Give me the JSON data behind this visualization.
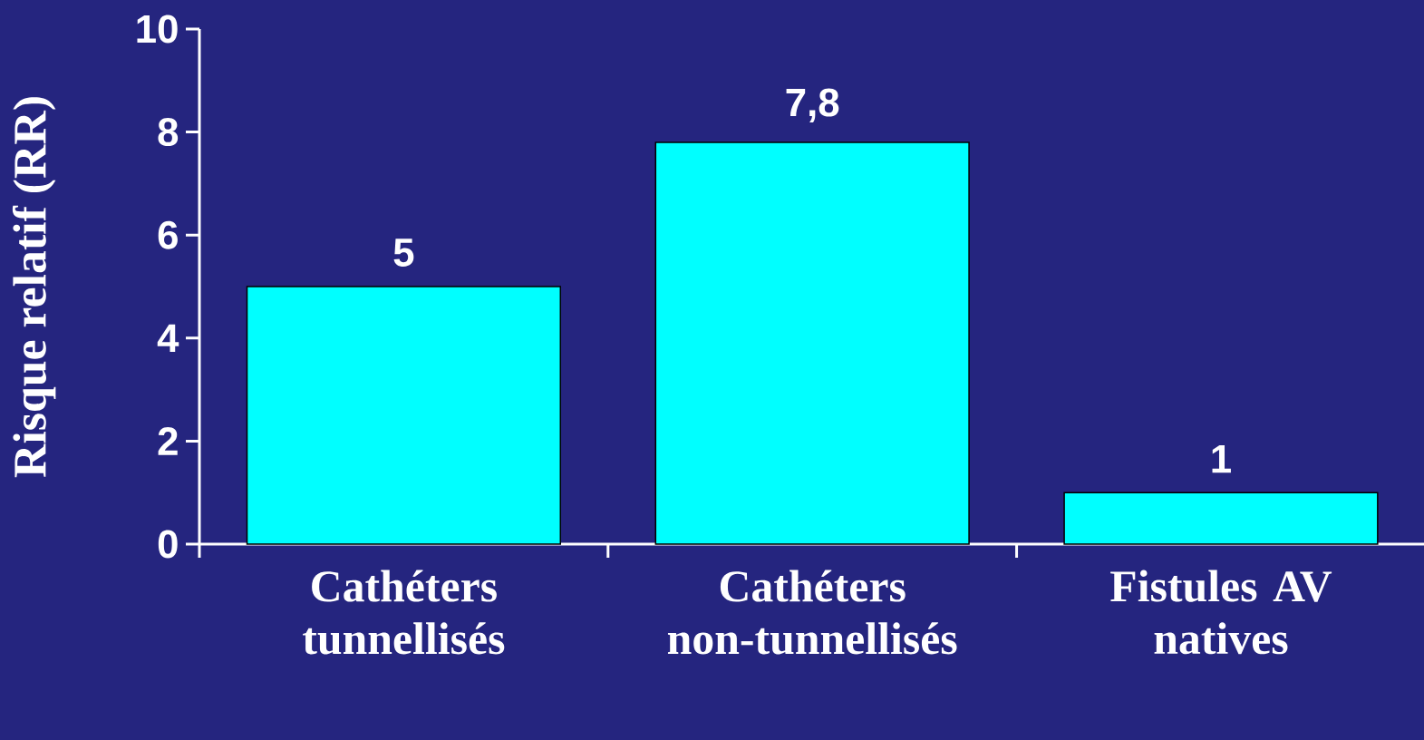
{
  "chart_data": {
    "type": "bar",
    "ylabel": "Risque relatif (RR)",
    "categories": [
      "Cathéters tunnellisés",
      "Cathéters non-tunnellisés",
      "Fistules AV natives"
    ],
    "values": [
      5,
      7.8,
      1
    ],
    "value_labels": [
      "5",
      "7,8",
      "1"
    ],
    "color": "#00ffff",
    "ylim": [
      0,
      10
    ],
    "yticks": [
      0,
      2,
      4,
      6,
      8,
      10
    ]
  }
}
